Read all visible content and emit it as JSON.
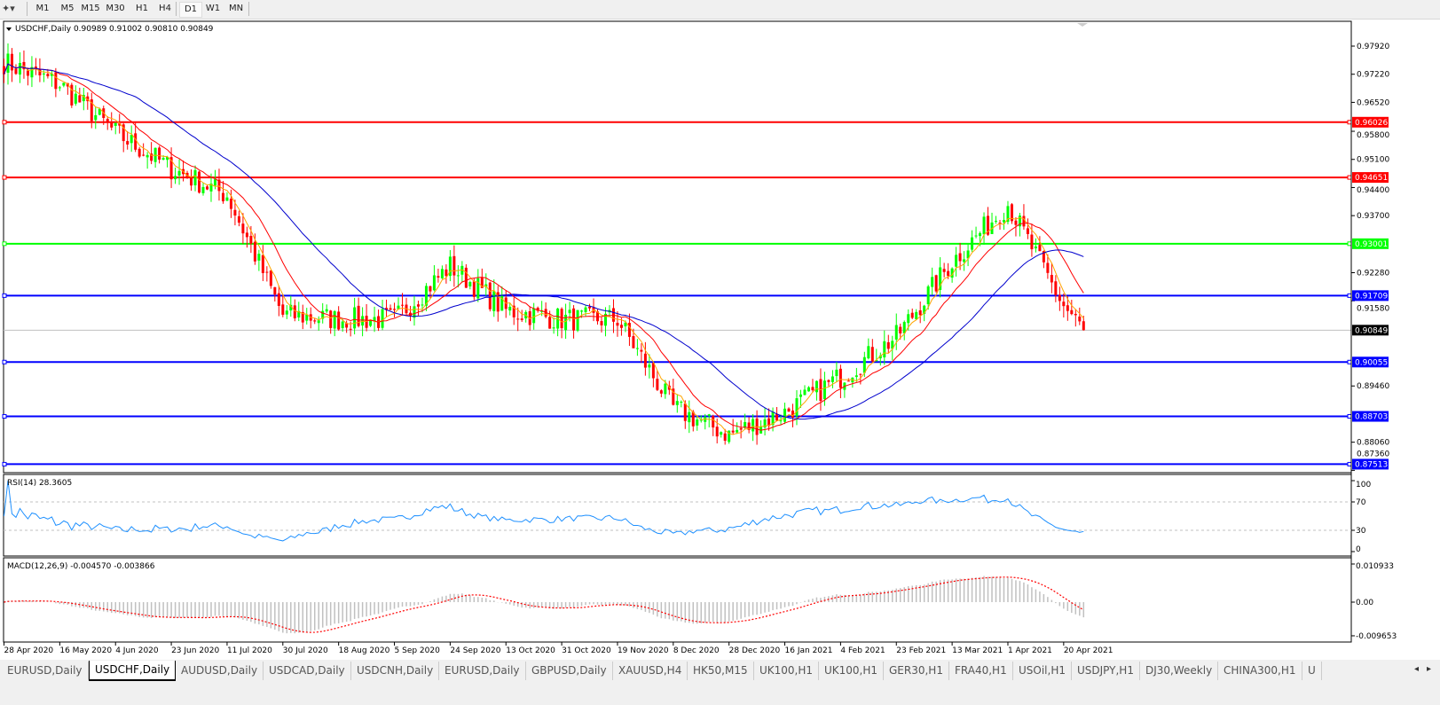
{
  "toolbar": {
    "timeframes": [
      "M1",
      "M5",
      "M15",
      "M30",
      "H1",
      "H4",
      "D1",
      "W1",
      "MN"
    ],
    "active_timeframe": "D1"
  },
  "chart": {
    "symbol_header": "USDCHF,Daily",
    "ohlc": "0.90989 0.91002 0.90810 0.90849",
    "colors": {
      "bull": "#00ff00",
      "bear": "#ff0000",
      "ma_fast": "#ffa500",
      "ma_mid": "#ff0000",
      "ma_slow": "#0000cd",
      "background": "#ffffff"
    },
    "price_axis": [
      "0.97920",
      "0.97220",
      "0.96520",
      "0.95800",
      "0.95100",
      "0.94400",
      "0.93700",
      "0.92280",
      "0.91580",
      "0.89460",
      "0.88060",
      "0.87360"
    ],
    "current_price": "0.90849",
    "levels": [
      {
        "value": "0.96026",
        "color": "#ff0000"
      },
      {
        "value": "0.94651",
        "color": "#ff0000"
      },
      {
        "value": "0.93001",
        "color": "#00ff00"
      },
      {
        "value": "0.91709",
        "color": "#0000ff"
      },
      {
        "value": "0.90055",
        "color": "#0000ff"
      },
      {
        "value": "0.88703",
        "color": "#0000ff"
      },
      {
        "value": "0.87513",
        "color": "#0000ff"
      }
    ],
    "date_axis": [
      "28 Apr 2020",
      "16 May 2020",
      "4 Jun 2020",
      "23 Jun 2020",
      "11 Jul 2020",
      "30 Jul 2020",
      "18 Aug 2020",
      "5 Sep 2020",
      "24 Sep 2020",
      "13 Oct 2020",
      "31 Oct 2020",
      "19 Nov 2020",
      "8 Dec 2020",
      "28 Dec 2020",
      "16 Jan 2021",
      "4 Feb 2021",
      "23 Feb 2021",
      "13 Mar 2021",
      "1 Apr 2021",
      "20 Apr 2021"
    ],
    "approx_close_at_dates": [
      0.9752,
      0.9697,
      0.9576,
      0.9487,
      0.9421,
      0.9123,
      0.9112,
      0.9112,
      0.9245,
      0.9134,
      0.9112,
      0.9112,
      0.8891,
      0.8825,
      0.888,
      0.8969,
      0.9068,
      0.9256,
      0.9399,
      0.9145
    ],
    "last_close": 0.90849
  },
  "rsi": {
    "label": "RSI(14) 28.3605",
    "axis": [
      "100",
      "70",
      "30",
      "0"
    ],
    "color": "#1e90ff"
  },
  "macd": {
    "label": "MACD(12,26,9) -0.004570 -0.003866",
    "axis": [
      "0.010933",
      "0.00",
      "-0.009653"
    ],
    "histogram_color": "#c0c0c0",
    "signal_color": "#ff0000"
  },
  "tabs": [
    {
      "label": "EURUSD,Daily"
    },
    {
      "label": "USDCHF,Daily",
      "active": true
    },
    {
      "label": "AUDUSD,Daily"
    },
    {
      "label": "USDCAD,Daily"
    },
    {
      "label": "USDCNH,Daily"
    },
    {
      "label": "EURUSD,Daily"
    },
    {
      "label": "GBPUSD,Daily"
    },
    {
      "label": "XAUUSD,H4"
    },
    {
      "label": "HK50,M15"
    },
    {
      "label": "UK100,H1"
    },
    {
      "label": "UK100,H1"
    },
    {
      "label": "GER30,H1"
    },
    {
      "label": "FRA40,H1"
    },
    {
      "label": "USOil,H1"
    },
    {
      "label": "USDJPY,H1"
    },
    {
      "label": "DJ30,Weekly"
    },
    {
      "label": "CHINA300,H1"
    },
    {
      "label": "U"
    }
  ]
}
